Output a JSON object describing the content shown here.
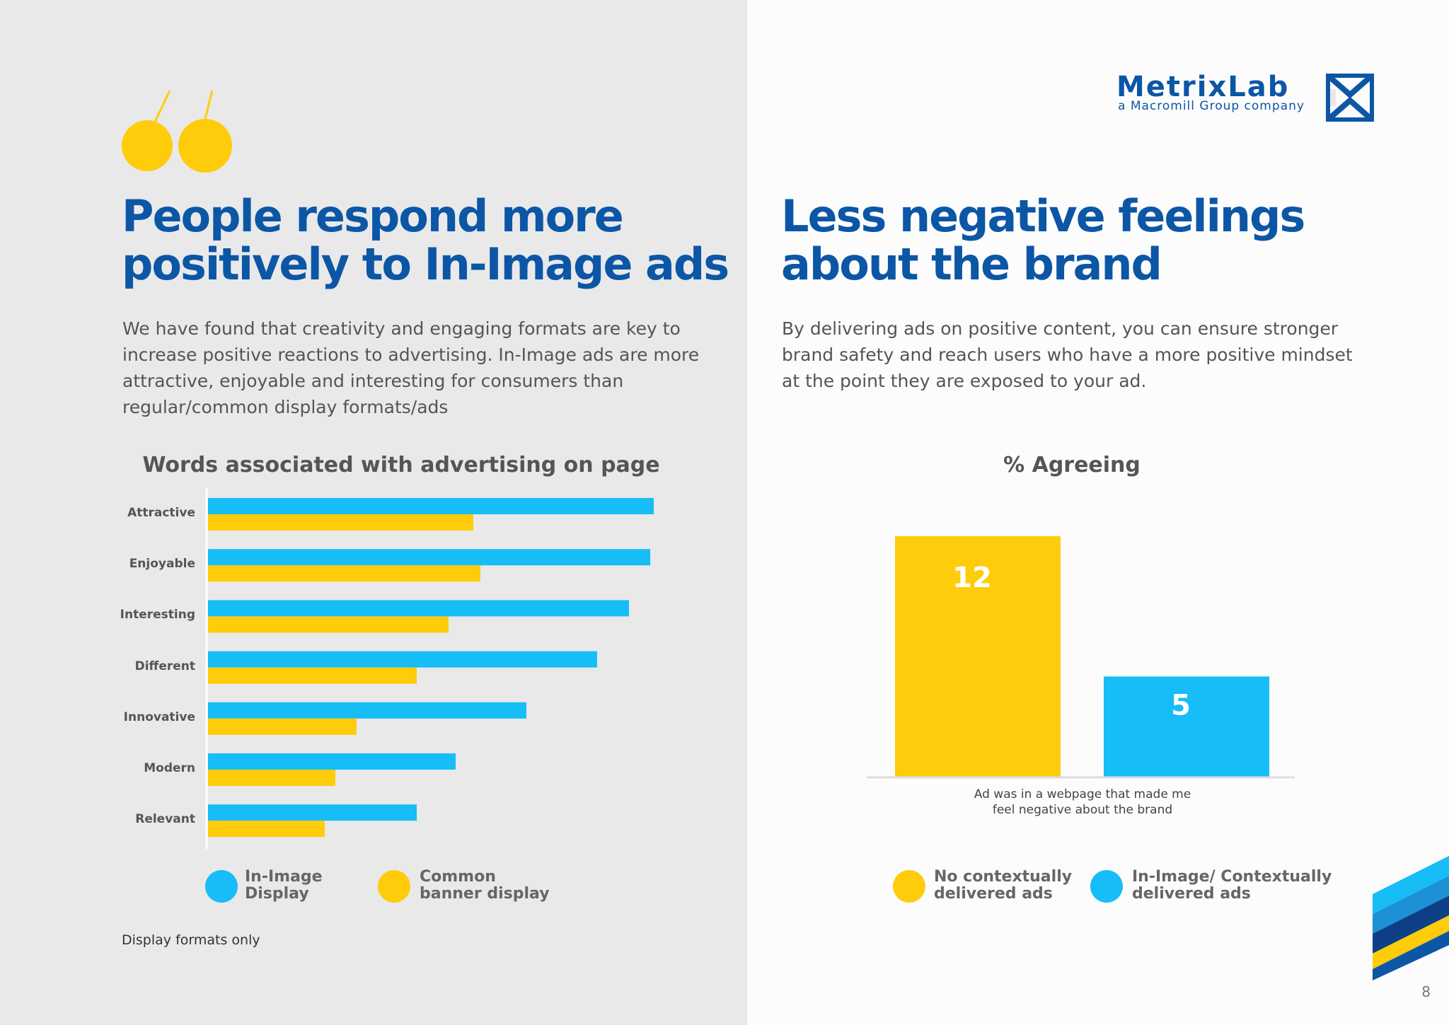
{
  "left": {
    "headline_line1": "People respond more",
    "headline_line2": "positively to In-Image ads",
    "body": "We have found that creativity and engaging formats are key to increase positive reactions to advertising. In-Image ads are more attractive, enjoyable and interesting for consumers than regular/common display formats/ads",
    "footnote": "Display formats only"
  },
  "right": {
    "headline_line1": "Less negative feelings",
    "headline_line2": "about the brand",
    "body": "By delivering ads on positive content, you can ensure stronger brand safety and reach users who have a more positive mindset at the point they are exposed to your ad."
  },
  "logo": {
    "name": "MetrixLab",
    "subtitle": "a Macromill Group company"
  },
  "page_number": "8",
  "colors": {
    "blue": "#16bdf7",
    "yellow": "#fecc0a",
    "brand_blue": "#0c56a6",
    "left_bg": "#e9e9ea"
  },
  "chart_data": [
    {
      "type": "bar",
      "orientation": "horizontal",
      "title": "Words associated with advertising on page",
      "categories": [
        "Attractive",
        "Enjoyable",
        "Interesting",
        "Different",
        "Innovative",
        "Modern",
        "Relevant"
      ],
      "series": [
        {
          "name": "In-Image Display",
          "color": "#16bdf7",
          "values": [
            63,
            62.5,
            59.5,
            55,
            45,
            35,
            29.5
          ]
        },
        {
          "name": "Common banner display",
          "color": "#fecc0a",
          "values": [
            37.5,
            38.5,
            34,
            29.5,
            21,
            18,
            16.5
          ]
        }
      ],
      "legend": [
        {
          "line1": "In-Image",
          "line2": "Display",
          "color": "#16bdf7"
        },
        {
          "line1": "Common",
          "line2": "banner display",
          "color": "#fecc0a"
        }
      ],
      "xlim": [
        0,
        70
      ],
      "xlabel": "",
      "ylabel": ""
    },
    {
      "type": "bar",
      "title": "% Agreeing",
      "category_label_line1": "Ad was in a webpage that made me",
      "category_label_line2": "feel negative about the brand",
      "series": [
        {
          "name": "No contextually delivered ads",
          "color": "#fecc0a",
          "value": 12
        },
        {
          "name": "In-Image/ Contextually delivered ads",
          "color": "#16bdf7",
          "value": 5
        }
      ],
      "legend": [
        {
          "line1": "No contextually",
          "line2": "delivered ads",
          "color": "#fecc0a"
        },
        {
          "line1": "In-Image/ Contextually",
          "line2": "delivered ads",
          "color": "#16bdf7"
        }
      ],
      "ylim": [
        0,
        12
      ]
    }
  ]
}
